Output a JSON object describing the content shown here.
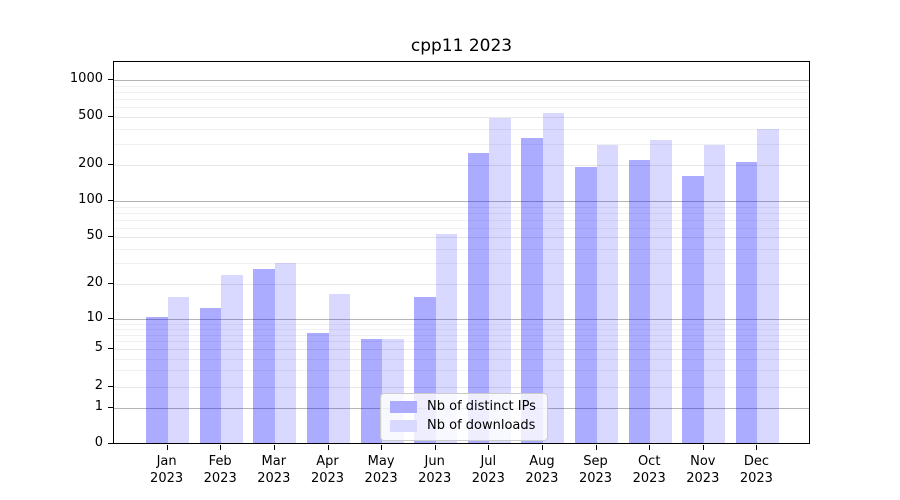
{
  "title": "cpp11 2023",
  "chart_data": {
    "type": "bar",
    "title": "cpp11 2023",
    "categories": [
      "Jan 2023",
      "Feb 2023",
      "Mar 2023",
      "Apr 2023",
      "May 2023",
      "Jun 2023",
      "Jul 2023",
      "Aug 2023",
      "Sep 2023",
      "Oct 2023",
      "Nov 2023",
      "Dec 2023"
    ],
    "x_tick_labels": [
      {
        "line1": "Jan",
        "line2": "2023"
      },
      {
        "line1": "Feb",
        "line2": "2023"
      },
      {
        "line1": "Mar",
        "line2": "2023"
      },
      {
        "line1": "Apr",
        "line2": "2023"
      },
      {
        "line1": "May",
        "line2": "2023"
      },
      {
        "line1": "Jun",
        "line2": "2023"
      },
      {
        "line1": "Jul",
        "line2": "2023"
      },
      {
        "line1": "Aug",
        "line2": "2023"
      },
      {
        "line1": "Sep",
        "line2": "2023"
      },
      {
        "line1": "Oct",
        "line2": "2023"
      },
      {
        "line1": "Nov",
        "line2": "2023"
      },
      {
        "line1": "Dec",
        "line2": "2023"
      }
    ],
    "series": [
      {
        "name": "Nb of distinct IPs",
        "color": "rgba(0,0,255,0.33)",
        "color_hex_on_white": "#ababff",
        "values": [
          10,
          12,
          26,
          7,
          6,
          15,
          240,
          320,
          185,
          212,
          155,
          205
        ]
      },
      {
        "name": "Nb of downloads",
        "color": "rgba(0,0,255,0.15)",
        "color_hex_on_white": "#d9d9ff",
        "values": [
          15,
          23,
          29,
          16,
          6,
          51,
          475,
          515,
          280,
          310,
          280,
          380
        ]
      }
    ],
    "y_scale": "log-like (symlog, linear below 1)",
    "y_ticks": [
      0,
      1,
      2,
      5,
      10,
      20,
      50,
      100,
      200,
      500,
      1000
    ],
    "ylim": [
      0,
      1500
    ],
    "xlabel": "",
    "ylabel": "",
    "grid": true,
    "legend_position": "lower center"
  },
  "colors": {
    "major_gridline": "#b5b5b5",
    "minor_gridline": "#e7e7e7",
    "axis_spine": "#000000",
    "legend_border": "#cccccc"
  }
}
